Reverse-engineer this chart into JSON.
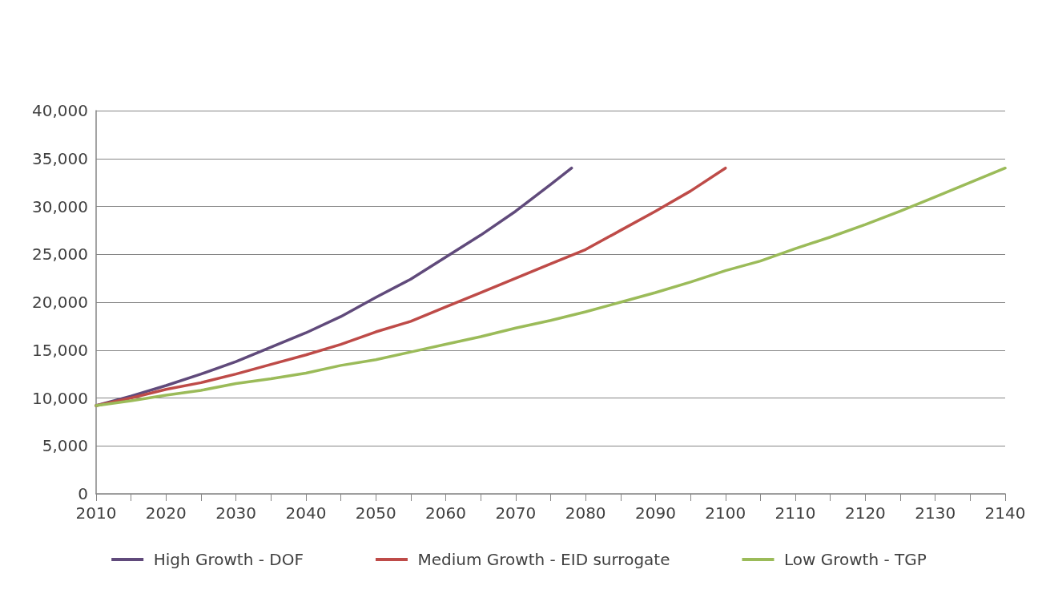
{
  "chart_data": {
    "type": "line",
    "x": [
      2010,
      2015,
      2020,
      2025,
      2030,
      2035,
      2040,
      2045,
      2050,
      2055,
      2060,
      2065,
      2070,
      2075,
      2080,
      2085,
      2090,
      2095,
      2100,
      2105,
      2110,
      2115,
      2120,
      2125,
      2130,
      2135,
      2140
    ],
    "series": [
      {
        "name": "High Growth - DOF",
        "color": "#604a7b",
        "x": [
          2010,
          2015,
          2020,
          2025,
          2030,
          2035,
          2040,
          2045,
          2050,
          2055,
          2060,
          2065,
          2070,
          2075,
          2078
        ],
        "values": [
          9200,
          10200,
          11300,
          12500,
          13800,
          15300,
          16800,
          18500,
          20500,
          22400,
          24700,
          27000,
          29500,
          32300,
          34000
        ]
      },
      {
        "name": "Medium Growth - EID surrogate",
        "color": "#be4b48",
        "x": [
          2010,
          2015,
          2020,
          2025,
          2030,
          2035,
          2040,
          2045,
          2050,
          2055,
          2060,
          2065,
          2070,
          2075,
          2080,
          2085,
          2090,
          2095,
          2100
        ],
        "values": [
          9200,
          10000,
          10900,
          11600,
          12500,
          13500,
          14500,
          15600,
          16900,
          18000,
          19500,
          21000,
          22500,
          24000,
          25500,
          27500,
          29500,
          31600,
          34000
        ]
      },
      {
        "name": "Low Growth - TGP",
        "color": "#9bbb59",
        "values": [
          9200,
          9700,
          10300,
          10800,
          11500,
          12000,
          12600,
          13400,
          14000,
          14800,
          15600,
          16400,
          17300,
          18100,
          19000,
          20000,
          21000,
          22100,
          23300,
          24300,
          25600,
          26800,
          28100,
          29500,
          31000,
          32500,
          34000
        ]
      }
    ],
    "xlim": [
      2010,
      2140
    ],
    "xticks": [
      2010,
      {
        "value": 2015,
        "label": null
      },
      2020,
      {
        "value": 2025,
        "label": null
      },
      2030,
      {
        "value": 2035,
        "label": null
      },
      2040,
      {
        "value": 2045,
        "label": null
      },
      2050,
      {
        "value": 2055,
        "label": null
      },
      2060,
      {
        "value": 2065,
        "label": null
      },
      2070,
      {
        "value": 2075,
        "label": null
      },
      2080,
      {
        "value": 2085,
        "label": null
      },
      2090,
      {
        "value": 2095,
        "label": null
      },
      2100,
      {
        "value": 2105,
        "label": null
      },
      2110,
      {
        "value": 2115,
        "label": null
      },
      2120,
      {
        "value": 2125,
        "label": null
      },
      2130,
      {
        "value": 2135,
        "label": null
      },
      2140
    ],
    "ylim": [
      0,
      40000
    ],
    "yticks": [
      {
        "value": 0,
        "label": "0"
      },
      {
        "value": 5000,
        "label": "5,000"
      },
      {
        "value": 10000,
        "label": "10,000"
      },
      {
        "value": 15000,
        "label": "15,000"
      },
      {
        "value": 20000,
        "label": "20,000"
      },
      {
        "value": 25000,
        "label": "25,000"
      },
      {
        "value": 30000,
        "label": "30,000"
      },
      {
        "value": 35000,
        "label": "35,000"
      },
      {
        "value": 40000,
        "label": "40,000"
      }
    ],
    "grid": "y",
    "legend": "bottom",
    "marker": "none",
    "line_style": "solid"
  }
}
